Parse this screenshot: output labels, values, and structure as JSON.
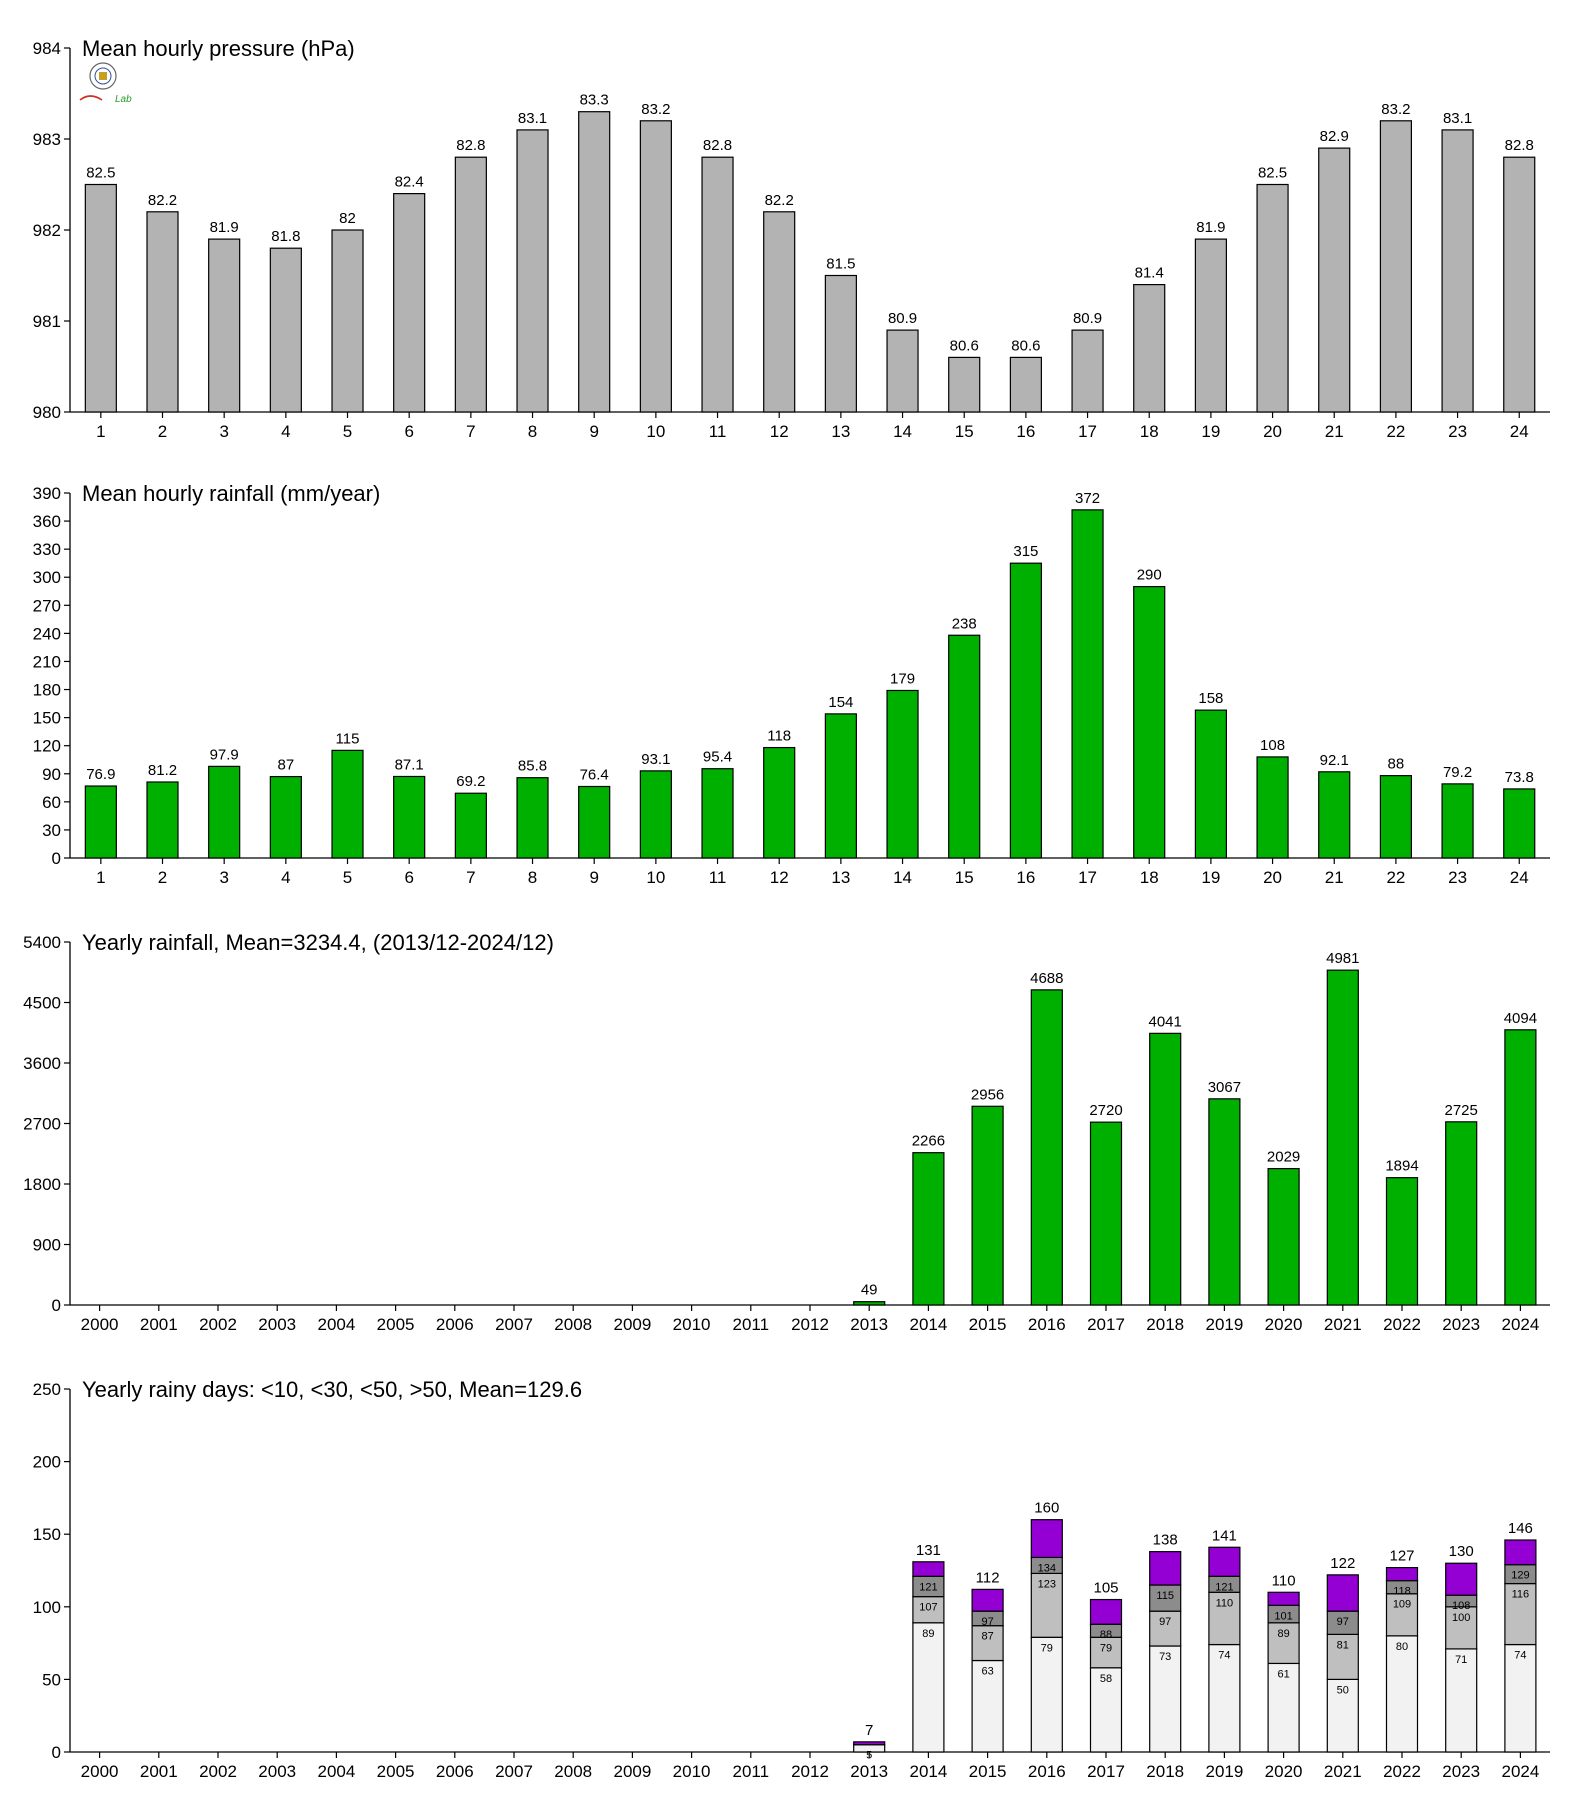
{
  "colors": {
    "pressure": "#b3b3b3",
    "rain": "#00b000",
    "days_lt10": "#f2f2f2",
    "days_lt30": "#bfbfbf",
    "days_lt50": "#8c8c8c",
    "days_gt50": "#9400d3"
  },
  "logo": {
    "text": "Lab"
  },
  "chart_data": [
    {
      "id": "pressure",
      "type": "bar",
      "title": "Mean hourly pressure (hPa)",
      "categories": [
        "1",
        "2",
        "3",
        "4",
        "5",
        "6",
        "7",
        "8",
        "9",
        "10",
        "11",
        "12",
        "13",
        "14",
        "15",
        "16",
        "17",
        "18",
        "19",
        "20",
        "21",
        "22",
        "23",
        "24"
      ],
      "values": [
        982.5,
        982.2,
        981.9,
        981.8,
        982.0,
        982.4,
        982.8,
        983.1,
        983.3,
        983.2,
        982.8,
        982.2,
        981.5,
        980.9,
        980.6,
        980.6,
        980.9,
        981.4,
        981.9,
        982.5,
        982.9,
        983.2,
        983.1,
        982.8
      ],
      "data_labels": [
        "82.5",
        "82.2",
        "81.9",
        "81.8",
        "82",
        "82.4",
        "82.8",
        "83.1",
        "83.3",
        "83.2",
        "82.8",
        "82.2",
        "81.5",
        "80.9",
        "80.6",
        "80.6",
        "80.9",
        "81.4",
        "81.9",
        "82.5",
        "82.9",
        "83.2",
        "83.1",
        "82.8"
      ],
      "ylim": [
        980,
        984
      ],
      "yticks": [
        980,
        981,
        982,
        983,
        984
      ]
    },
    {
      "id": "hourly_rain",
      "type": "bar",
      "title": "Mean hourly rainfall (mm/year)",
      "categories": [
        "1",
        "2",
        "3",
        "4",
        "5",
        "6",
        "7",
        "8",
        "9",
        "10",
        "11",
        "12",
        "13",
        "14",
        "15",
        "16",
        "17",
        "18",
        "19",
        "20",
        "21",
        "22",
        "23",
        "24"
      ],
      "values": [
        76.9,
        81.2,
        97.9,
        87,
        115,
        87.1,
        69.2,
        85.8,
        76.4,
        93.1,
        95.4,
        118,
        154,
        179,
        238,
        315,
        372,
        290,
        158,
        108,
        92.1,
        88,
        79.2,
        73.8
      ],
      "data_labels": [
        "76.9",
        "81.2",
        "97.9",
        "87",
        "115",
        "87.1",
        "69.2",
        "85.8",
        "76.4",
        "93.1",
        "95.4",
        "118",
        "154",
        "179",
        "238",
        "315",
        "372",
        "290",
        "158",
        "108",
        "92.1",
        "88",
        "79.2",
        "73.8"
      ],
      "ylim": [
        0,
        390
      ],
      "yticks": [
        0,
        30,
        60,
        90,
        120,
        150,
        180,
        210,
        240,
        270,
        300,
        330,
        360,
        390
      ]
    },
    {
      "id": "yearly_rain",
      "type": "bar",
      "title": "Yearly rainfall, Mean=3234.4, (2013/12-2024/12)",
      "categories": [
        "2000",
        "2001",
        "2002",
        "2003",
        "2004",
        "2005",
        "2006",
        "2007",
        "2008",
        "2009",
        "2010",
        "2011",
        "2012",
        "2013",
        "2014",
        "2015",
        "2016",
        "2017",
        "2018",
        "2019",
        "2020",
        "2021",
        "2022",
        "2023",
        "2024"
      ],
      "values": [
        null,
        null,
        null,
        null,
        null,
        null,
        null,
        null,
        null,
        null,
        null,
        null,
        null,
        49,
        2266,
        2956,
        4688,
        2720,
        4041,
        3067,
        2029,
        4981,
        1894,
        2725,
        4094
      ],
      "data_labels": [
        "",
        "",
        "",
        "",
        "",
        "",
        "",
        "",
        "",
        "",
        "",
        "",
        "",
        "49",
        "2266",
        "2956",
        "4688",
        "2720",
        "4041",
        "3067",
        "2029",
        "4981",
        "1894",
        "2725",
        "4094"
      ],
      "ylim": [
        0,
        5400
      ],
      "yticks": [
        0,
        900,
        1800,
        2700,
        3600,
        4500,
        5400
      ]
    },
    {
      "id": "rainy_days",
      "type": "bar",
      "stacked": true,
      "title": "Yearly rainy days: <10, <30, <50, >50, Mean=129.6",
      "categories": [
        "2000",
        "2001",
        "2002",
        "2003",
        "2004",
        "2005",
        "2006",
        "2007",
        "2008",
        "2009",
        "2010",
        "2011",
        "2012",
        "2013",
        "2014",
        "2015",
        "2016",
        "2017",
        "2018",
        "2019",
        "2020",
        "2021",
        "2022",
        "2023",
        "2024"
      ],
      "ylim": [
        0,
        250
      ],
      "yticks": [
        0,
        50,
        100,
        150,
        200,
        250
      ],
      "cumulative": {
        "lt10": [
          null,
          null,
          null,
          null,
          null,
          null,
          null,
          null,
          null,
          null,
          null,
          null,
          null,
          5,
          89,
          63,
          79,
          58,
          73,
          74,
          61,
          50,
          80,
          71,
          74
        ],
        "lt30": [
          null,
          null,
          null,
          null,
          null,
          null,
          null,
          null,
          null,
          null,
          null,
          null,
          null,
          null,
          107,
          87,
          123,
          79,
          97,
          110,
          89,
          81,
          109,
          100,
          116
        ],
        "lt50": [
          null,
          null,
          null,
          null,
          null,
          null,
          null,
          null,
          null,
          null,
          null,
          null,
          null,
          null,
          121,
          97,
          134,
          88,
          115,
          121,
          101,
          97,
          118,
          108,
          129
        ],
        "total": [
          null,
          null,
          null,
          null,
          null,
          null,
          null,
          null,
          null,
          null,
          null,
          null,
          null,
          7,
          131,
          112,
          160,
          105,
          138,
          141,
          110,
          122,
          127,
          130,
          146
        ]
      },
      "segment_labels": {
        "lt10": [
          "",
          "",
          "",
          "",
          "",
          "",
          "",
          "",
          "",
          "",
          "",
          "",
          "",
          "5",
          "89",
          "63",
          "79",
          "58",
          "73",
          "74",
          "61",
          "50",
          "80",
          "71",
          "74"
        ],
        "lt30": [
          "",
          "",
          "",
          "",
          "",
          "",
          "",
          "",
          "",
          "",
          "",
          "",
          "",
          "",
          "107",
          "87",
          "123",
          "79",
          "97",
          "110",
          "89",
          "81",
          "109",
          "100",
          "116"
        ],
        "lt50": [
          "",
          "",
          "",
          "",
          "",
          "",
          "",
          "",
          "",
          "",
          "",
          "",
          "",
          "",
          "121",
          "97",
          "134",
          "88",
          "115",
          "121",
          "101",
          "97",
          "118",
          "108",
          "129"
        ],
        "total": [
          "",
          "",
          "",
          "",
          "",
          "",
          "",
          "",
          "",
          "",
          "",
          "",
          "",
          "7",
          "131",
          "112",
          "160",
          "105",
          "138",
          "141",
          "110",
          "122",
          "127",
          "130",
          "146"
        ]
      }
    }
  ]
}
